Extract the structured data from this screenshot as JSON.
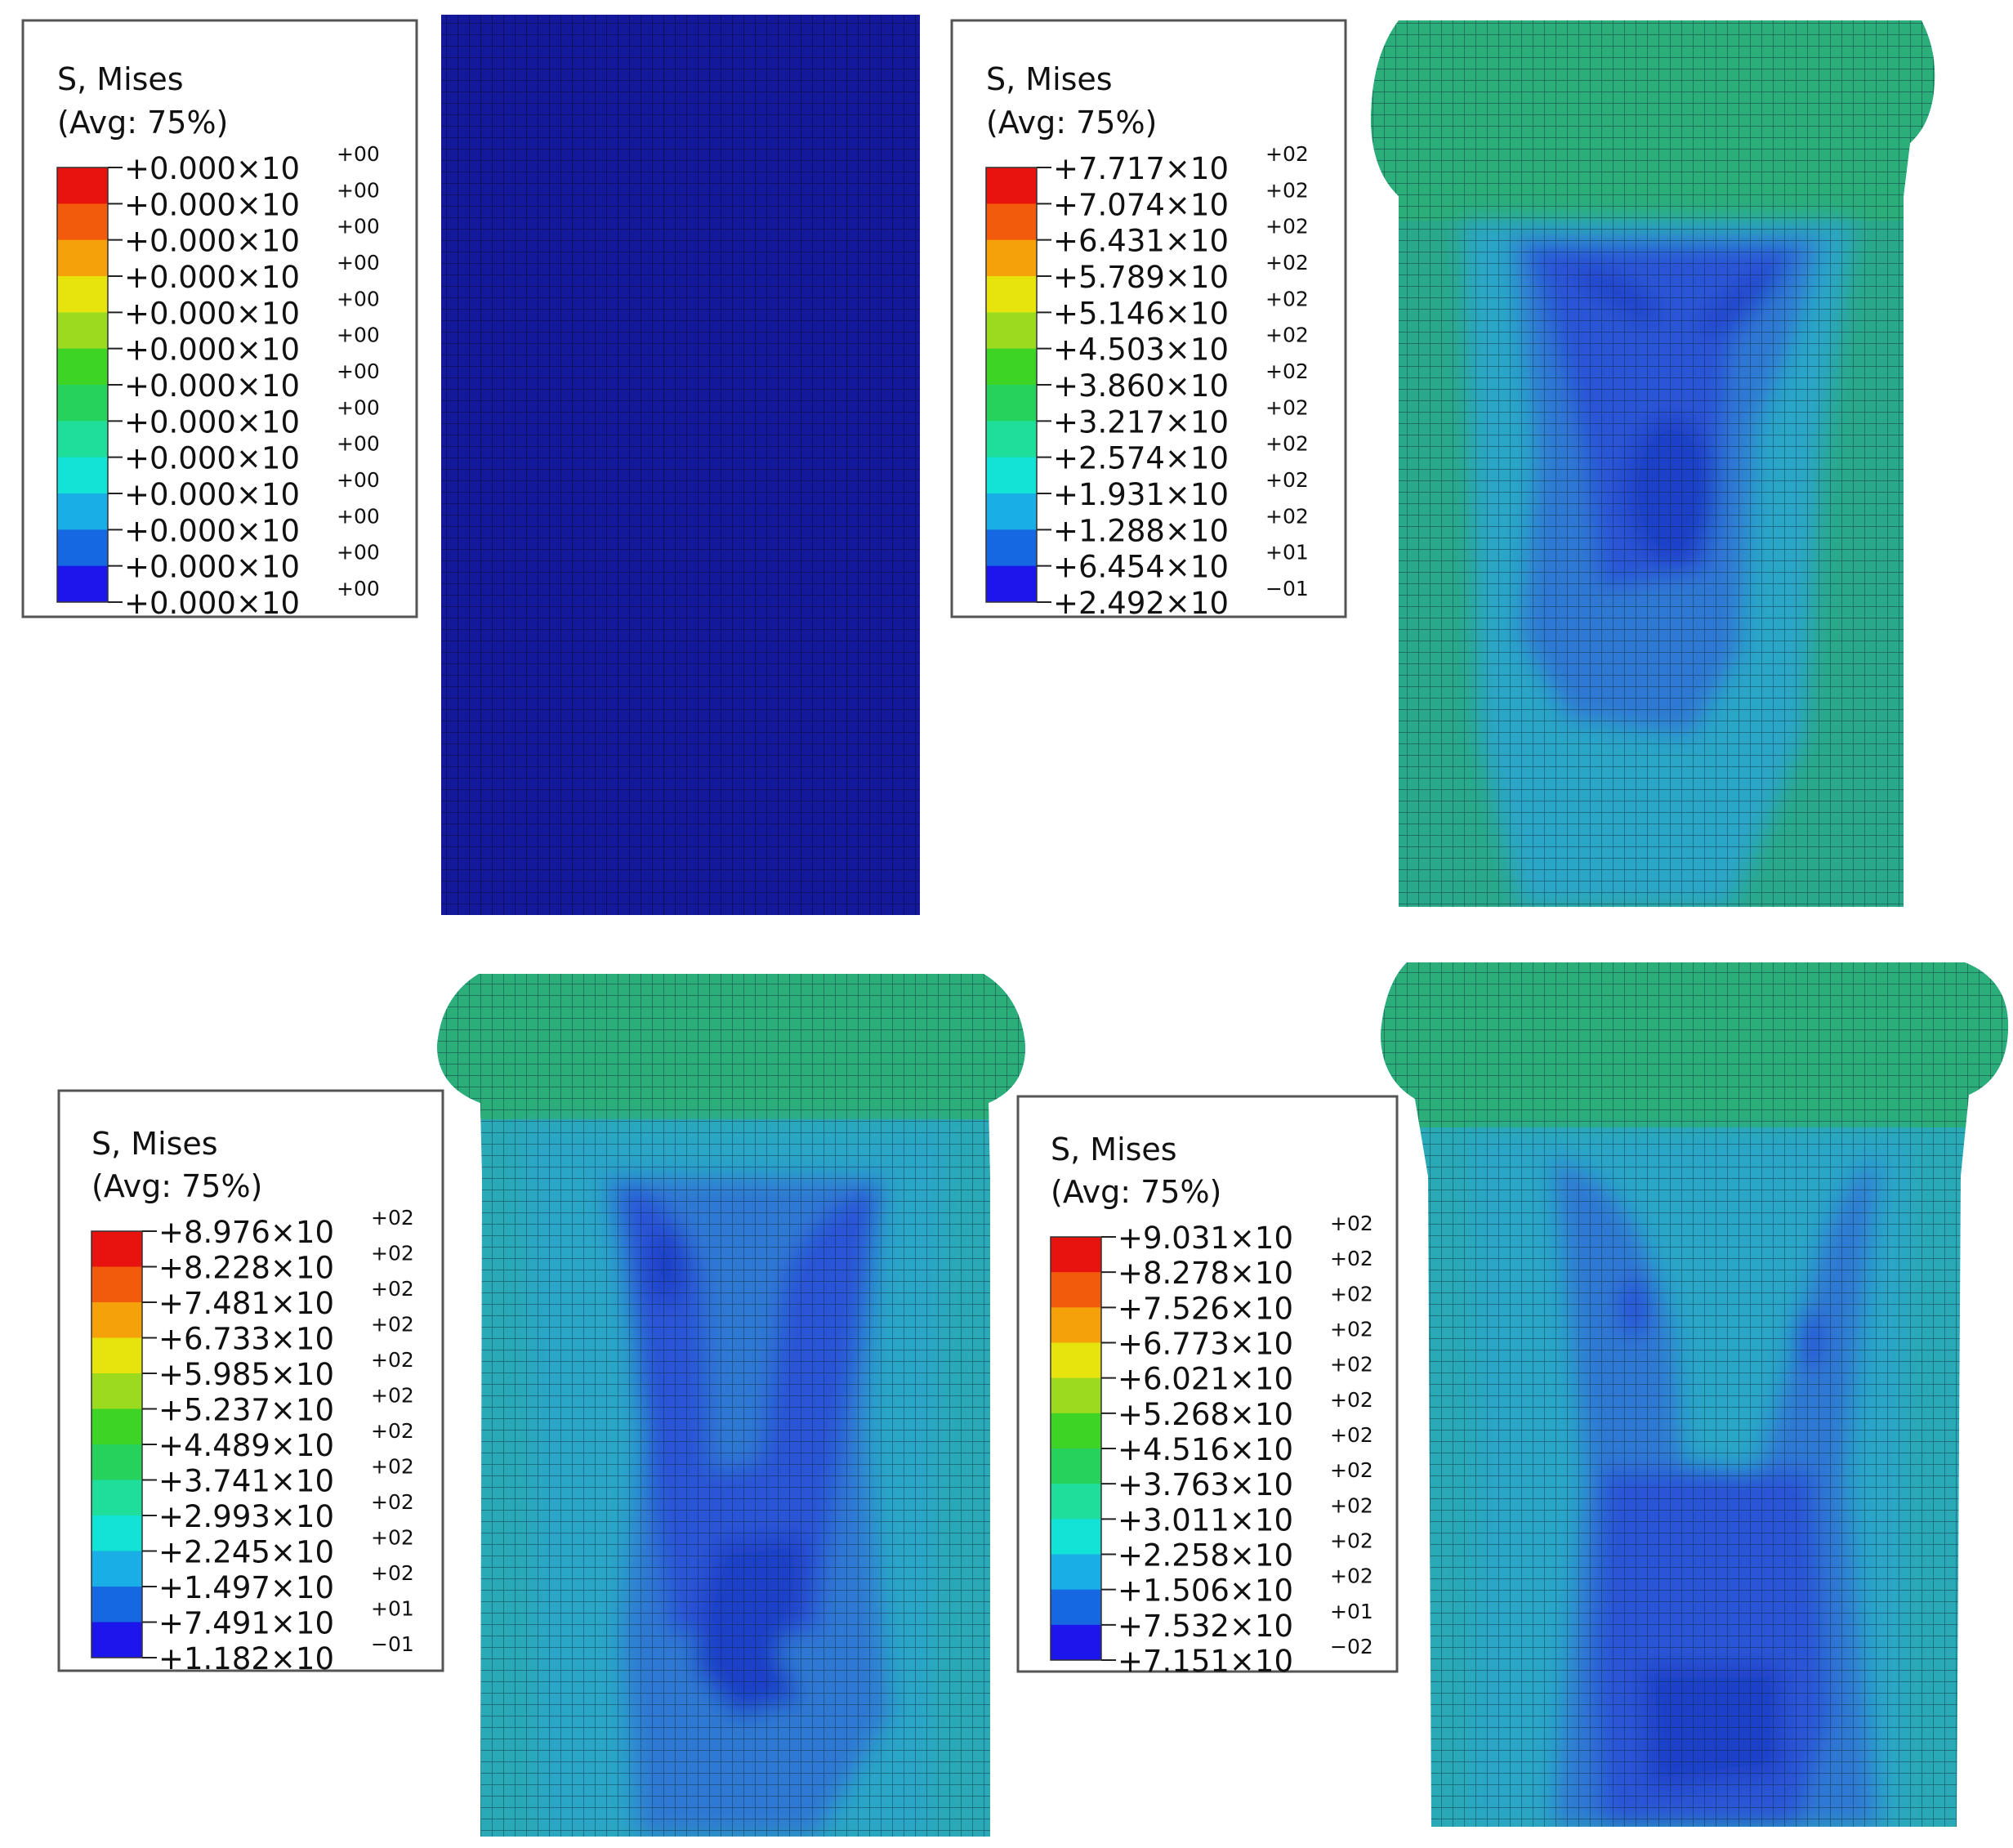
{
  "colormap": [
    "#e8120f",
    "#f25a0c",
    "#f5a20a",
    "#e6e40c",
    "#9cda1f",
    "#3dd426",
    "#27d25c",
    "#1fdd9a",
    "#11e3d6",
    "#1aaee6",
    "#1667e2",
    "#1c16ec"
  ],
  "mesh_colors": {
    "deep_blue": "#14199c",
    "blue": "#2c55d6",
    "mid_blue": "#2f79d3",
    "teal": "#29a6c7",
    "green": "#2cae7a",
    "green_dark": "#1f9a63"
  },
  "panels": [
    {
      "legend": {
        "title_line1": "S, Mises",
        "title_line2": "(Avg: 75%)",
        "values": [
          "+0.000×10",
          "+0.000×10",
          "+0.000×10",
          "+0.000×10",
          "+0.000×10",
          "+0.000×10",
          "+0.000×10",
          "+0.000×10",
          "+0.000×10",
          "+0.000×10",
          "+0.000×10",
          "+0.000×10",
          "+0.000×10"
        ],
        "exponents": [
          "+00",
          "+00",
          "+00",
          "+00",
          "+00",
          "+00",
          "+00",
          "+00",
          "+00",
          "+00",
          "+00",
          "+00",
          "+00"
        ]
      },
      "model": "undeformed"
    },
    {
      "legend": {
        "title_line1": "S, Mises",
        "title_line2": "(Avg: 75%)",
        "values": [
          "+7.717×10",
          "+7.074×10",
          "+6.431×10",
          "+5.789×10",
          "+5.146×10",
          "+4.503×10",
          "+3.860×10",
          "+3.217×10",
          "+2.574×10",
          "+1.931×10",
          "+1.288×10",
          "+6.454×10",
          "+2.492×10"
        ],
        "exponents": [
          "+02",
          "+02",
          "+02",
          "+02",
          "+02",
          "+02",
          "+02",
          "+02",
          "+02",
          "+02",
          "+02",
          "+01",
          "−01"
        ]
      },
      "model": "small-fold"
    },
    {
      "legend": {
        "title_line1": "S, Mises",
        "title_line2": "(Avg: 75%)",
        "values": [
          "+8.976×10",
          "+8.228×10",
          "+7.481×10",
          "+6.733×10",
          "+5.985×10",
          "+5.237×10",
          "+4.489×10",
          "+3.741×10",
          "+2.993×10",
          "+2.245×10",
          "+1.497×10",
          "+7.491×10",
          "+1.182×10"
        ],
        "exponents": [
          "+02",
          "+02",
          "+02",
          "+02",
          "+02",
          "+02",
          "+02",
          "+02",
          "+02",
          "+02",
          "+02",
          "+01",
          "−01"
        ]
      },
      "model": "medium-fold"
    },
    {
      "legend": {
        "title_line1": "S, Mises",
        "title_line2": "(Avg: 75%)",
        "values": [
          "+9.031×10",
          "+8.278×10",
          "+7.526×10",
          "+6.773×10",
          "+6.021×10",
          "+5.268×10",
          "+4.516×10",
          "+3.763×10",
          "+3.011×10",
          "+2.258×10",
          "+1.506×10",
          "+7.532×10",
          "+7.151×10"
        ],
        "exponents": [
          "+02",
          "+02",
          "+02",
          "+02",
          "+02",
          "+02",
          "+02",
          "+02",
          "+02",
          "+02",
          "+02",
          "+01",
          "−02"
        ]
      },
      "model": "large-fold"
    }
  ]
}
